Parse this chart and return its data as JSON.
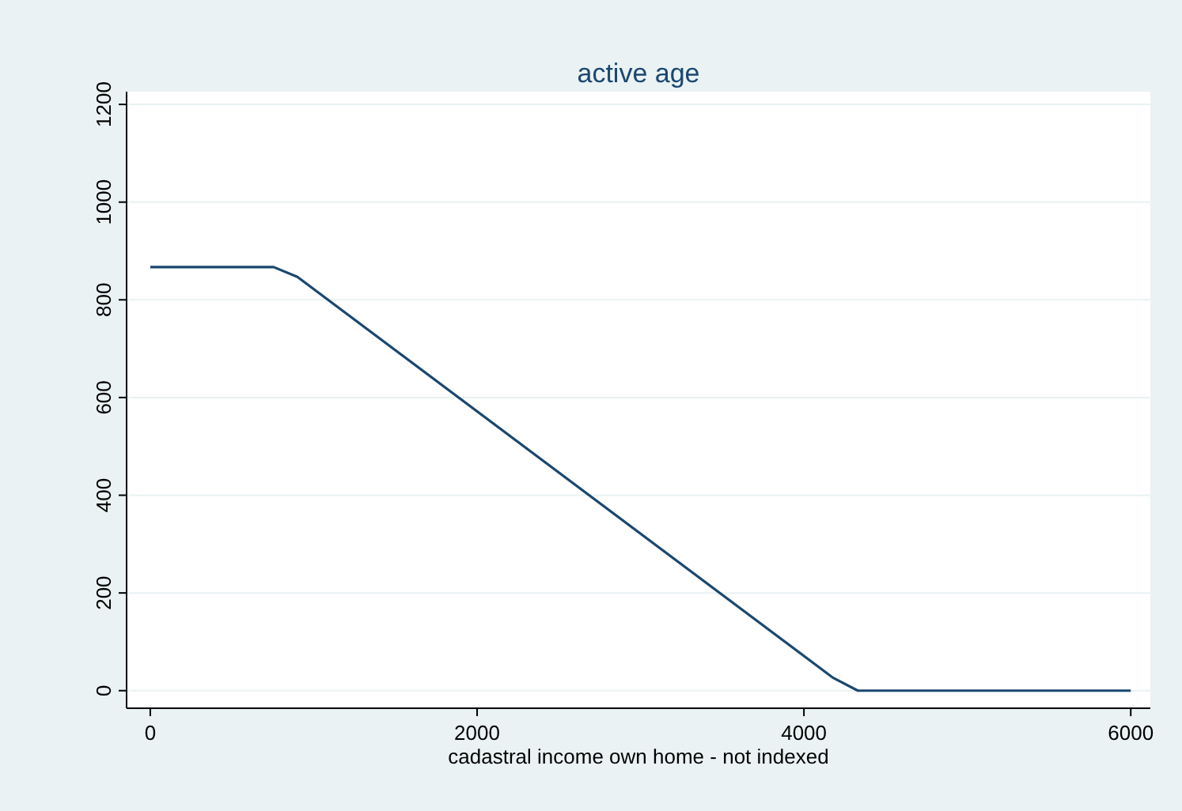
{
  "chart_data": {
    "type": "line",
    "title": "active age",
    "xlabel": "cadastral income own home - not indexed",
    "x": [
      0,
      755,
      900,
      4180,
      4330,
      6000
    ],
    "series": [
      {
        "color": "#1a476f",
        "values": [
          867,
          867,
          847,
          26,
          0,
          0
        ]
      }
    ],
    "xlim": [
      -145,
      6120
    ],
    "xticks": [
      0,
      2000,
      4000,
      6000
    ],
    "ylim": [
      -36,
      1226
    ],
    "yticks": [
      0,
      200,
      400,
      600,
      800,
      1000,
      1200
    ],
    "grid": "y",
    "marker": "none",
    "line_style": "solid"
  }
}
